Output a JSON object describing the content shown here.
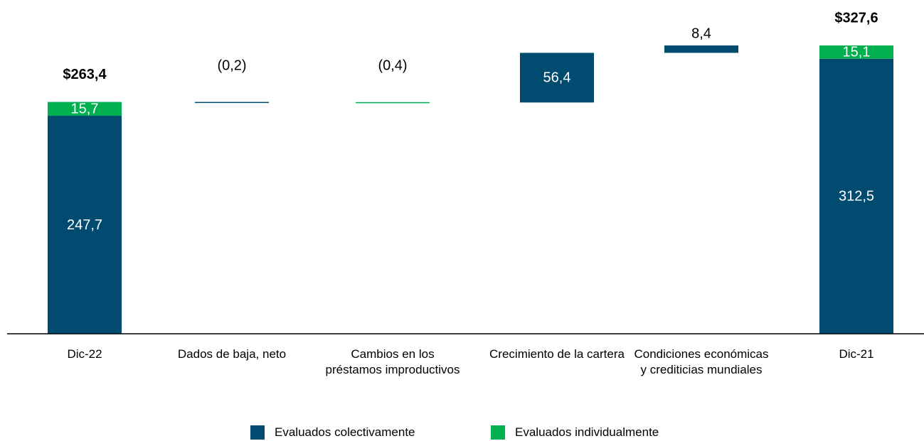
{
  "chart_data": {
    "type": "waterfall",
    "categories": [
      "Dic-22",
      "Dados de baja, neto",
      "Cambios en los préstamos improductivos",
      "Crecimiento de la cartera",
      "Condiciones económicas y crediticias mundiales",
      "Dic-21"
    ],
    "series": [
      {
        "name": "Evaluados colectivamente",
        "color": "#004b6f",
        "values": [
          247.7,
          -0.2,
          null,
          56.4,
          8.4,
          312.5
        ],
        "value_labels": [
          "247,7",
          "(0,2)",
          null,
          "56,4",
          "8,4",
          "312,5"
        ]
      },
      {
        "name": "Evaluados individualmente",
        "color": "#00b04f",
        "values": [
          15.7,
          null,
          -0.4,
          null,
          null,
          15.1
        ],
        "value_labels": [
          "15,7",
          null,
          "(0,4)",
          null,
          null,
          "15,1"
        ]
      }
    ],
    "totals": [
      263.4,
      null,
      null,
      null,
      null,
      327.6
    ],
    "total_labels": [
      "$263,4",
      null,
      null,
      null,
      null,
      "$327,6"
    ]
  }
}
